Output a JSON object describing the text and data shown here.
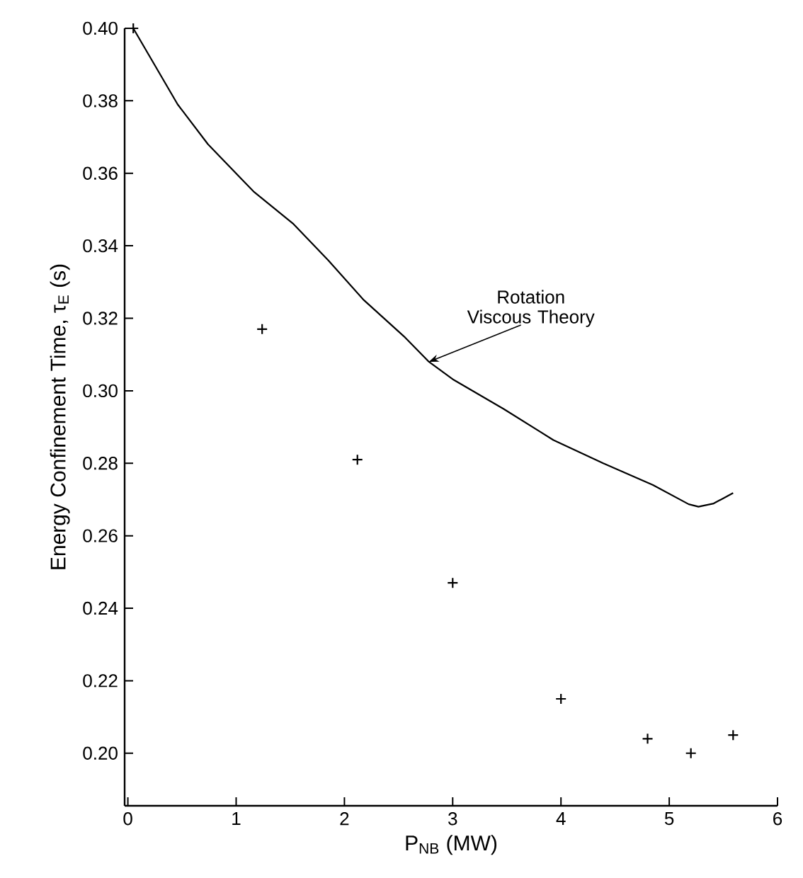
{
  "chart_data": {
    "type": "scatter",
    "xlabel": "P$_{NB}$ (MW)",
    "ylabel": "Energy Confinement Time,  τ$_{E}$ (s)",
    "xlim": [
      -0.03,
      6
    ],
    "ylim": [
      0.1855,
      0.4
    ],
    "xticks": [
      0,
      1,
      2,
      3,
      4,
      5,
      6
    ],
    "yticks": [
      {
        "value": 0.2,
        "label": "0.20"
      },
      0.22,
      0.24,
      0.26,
      0.28,
      {
        "value": 0.3,
        "label": "0.30"
      },
      0.32,
      0.34,
      0.36,
      0.38,
      {
        "value": 0.4,
        "label": "0.40"
      }
    ],
    "grid": false,
    "annotations": [
      {
        "text": "Rotation Viscous Theory",
        "x": 2.78,
        "y": 0.308
      }
    ],
    "series": [
      {
        "type": "line",
        "color": "#000000",
        "marker": "none",
        "line_style": "solid",
        "x": [
          0.05,
          0.46,
          0.74,
          1.16,
          1.53,
          1.85,
          2.18,
          2.55,
          2.78,
          3.01,
          3.47,
          3.93,
          4.39,
          4.85,
          5.18,
          5.27,
          5.41,
          5.59
        ],
        "values": [
          0.4,
          0.379,
          0.368,
          0.355,
          0.346,
          0.336,
          0.325,
          0.315,
          0.308,
          0.303,
          0.295,
          0.2864,
          0.28,
          0.274,
          0.2687,
          0.268,
          0.2689,
          0.2718
        ]
      },
      {
        "color": "#000000",
        "marker": "cross",
        "x": [
          0.05,
          1.24,
          2.12,
          3.0,
          4.0,
          4.8,
          5.2,
          5.59
        ],
        "values": [
          0.4,
          0.317,
          0.281,
          0.247,
          0.215,
          0.204,
          0.2,
          0.205
        ]
      }
    ]
  }
}
